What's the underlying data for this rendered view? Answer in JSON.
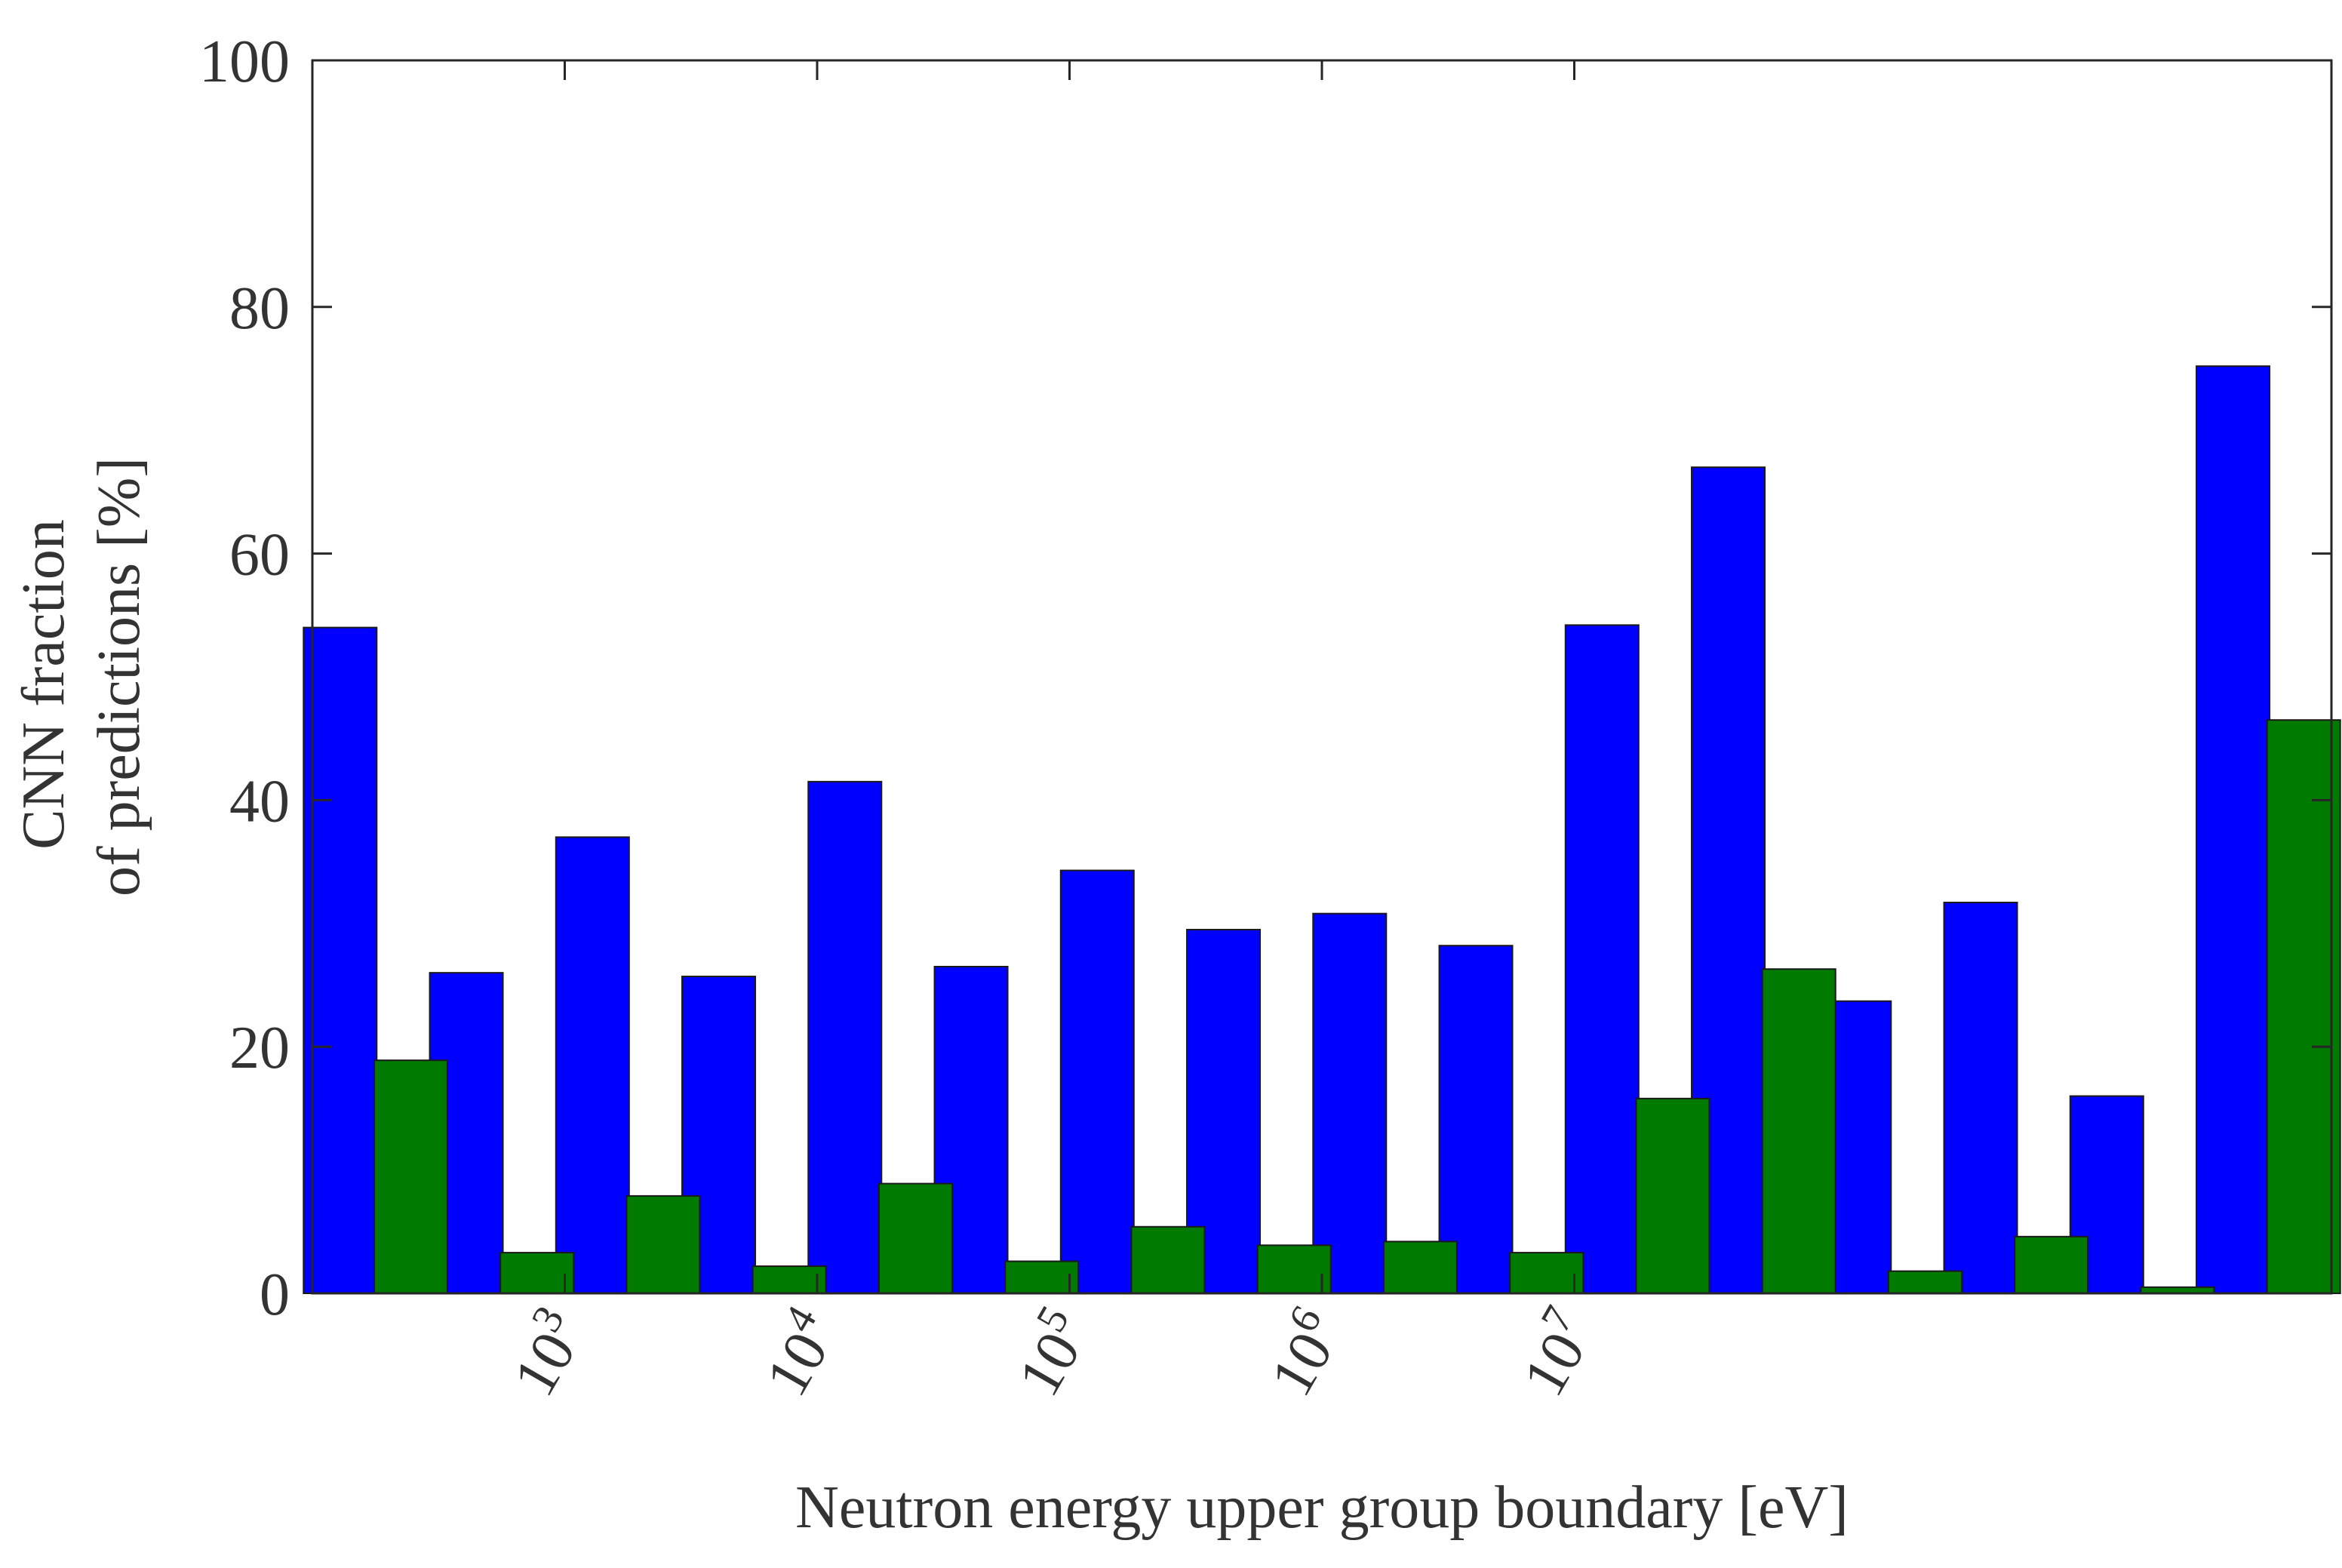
{
  "chart_data": {
    "type": "bar",
    "title": "",
    "xlabel": "Neutron energy upper group boundary [eV]",
    "ylabel_lines": [
      "CNN fraction",
      "of predictions  [%]"
    ],
    "ylim": [
      0,
      100
    ],
    "yticks": [
      0,
      20,
      40,
      60,
      80,
      100
    ],
    "xtick_labels": [
      {
        "base": "10",
        "exp": "3"
      },
      {
        "base": "10",
        "exp": "4"
      },
      {
        "base": "10",
        "exp": "5"
      },
      {
        "base": "10",
        "exp": "6"
      },
      {
        "base": "10",
        "exp": "7"
      }
    ],
    "num_groups": 16,
    "series": [
      {
        "name": "blue",
        "color": "#0000ff",
        "values": [
          54,
          26,
          37,
          25.7,
          41.5,
          26.5,
          34.3,
          29.5,
          30.8,
          28.2,
          54.2,
          67,
          23.7,
          31.7,
          16,
          75.2
        ]
      },
      {
        "name": "green",
        "color": "#007a00",
        "values": [
          18.9,
          3.3,
          7.9,
          2.2,
          8.9,
          2.6,
          5.4,
          3.9,
          4.2,
          3.3,
          15.8,
          26.3,
          1.8,
          4.6,
          0.5,
          46.5
        ]
      }
    ]
  }
}
